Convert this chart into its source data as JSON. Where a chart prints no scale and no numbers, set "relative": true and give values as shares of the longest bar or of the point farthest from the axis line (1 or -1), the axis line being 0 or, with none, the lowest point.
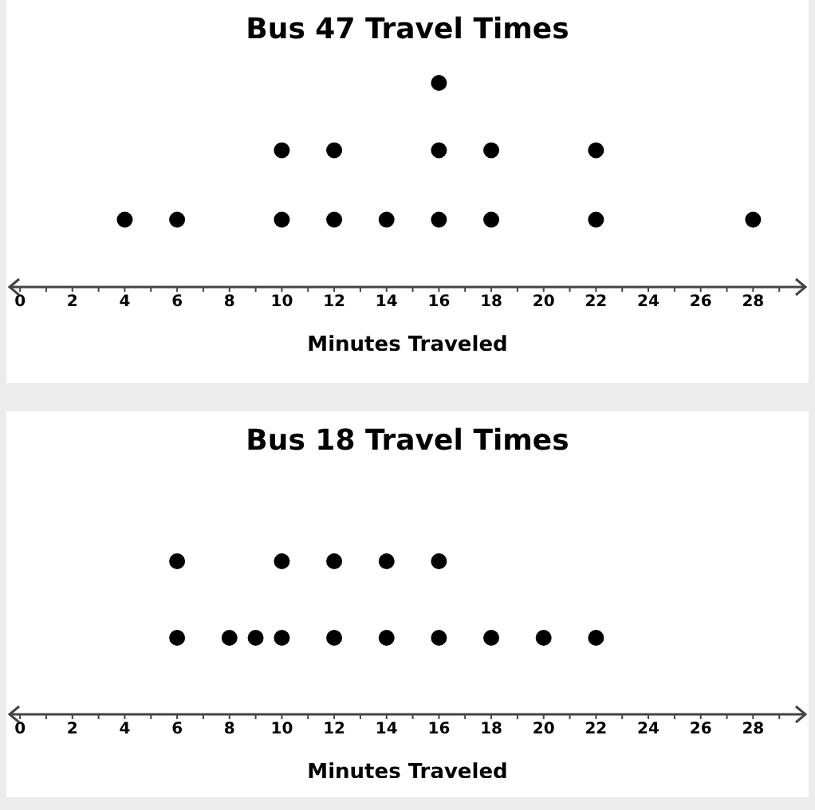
{
  "chart_data": [
    {
      "type": "scatter",
      "title": "Bus 47 Travel Times",
      "xlabel": "Minutes Traveled",
      "relative": true,
      "tick_labels": "x",
      "marker": "circle",
      "color": "#000000",
      "x": [
        4,
        6,
        10,
        10,
        12,
        12,
        14,
        16,
        16,
        16,
        18,
        18,
        22,
        22,
        28
      ],
      "values": [
        0.33,
        0.33,
        0.33,
        0.67,
        0.33,
        0.67,
        0.33,
        0.33,
        0.67,
        1,
        0.33,
        0.67,
        0.33,
        0.67,
        0.33
      ],
      "xlim": [
        -0.4,
        30
      ],
      "xticks": [
        0,
        {
          "value": 1,
          "label": null
        },
        2,
        {
          "value": 3,
          "label": null
        },
        4,
        {
          "value": 5,
          "label": null
        },
        6,
        {
          "value": 7,
          "label": null
        },
        8,
        {
          "value": 9,
          "label": null
        },
        10,
        {
          "value": 11,
          "label": null
        },
        12,
        {
          "value": 13,
          "label": null
        },
        14,
        {
          "value": 15,
          "label": null
        },
        16,
        {
          "value": 17,
          "label": null
        },
        18,
        {
          "value": 19,
          "label": null
        },
        20,
        {
          "value": 21,
          "label": null
        },
        22,
        {
          "value": 23,
          "label": null
        },
        24,
        {
          "value": 25,
          "label": null
        },
        26,
        {
          "value": 27,
          "label": null
        },
        28,
        {
          "value": 29,
          "label": null
        }
      ]
    },
    {
      "type": "scatter",
      "title": "Bus 18 Travel Times",
      "xlabel": "Minutes Traveled",
      "relative": true,
      "tick_labels": "x",
      "marker": "circle",
      "color": "#000000",
      "x": [
        6,
        6,
        8,
        9,
        10,
        10,
        12,
        12,
        14,
        14,
        16,
        16,
        18,
        20,
        22
      ],
      "values": [
        0.5,
        1,
        0.5,
        0.5,
        0.5,
        1,
        0.5,
        1,
        0.5,
        1,
        0.5,
        1,
        0.5,
        0.5,
        0.5
      ],
      "xlim": [
        -0.4,
        30
      ],
      "xticks": [
        0,
        {
          "value": 1,
          "label": null
        },
        2,
        {
          "value": 3,
          "label": null
        },
        4,
        {
          "value": 5,
          "label": null
        },
        6,
        {
          "value": 7,
          "label": null
        },
        8,
        {
          "value": 9,
          "label": null
        },
        10,
        {
          "value": 11,
          "label": null
        },
        12,
        {
          "value": 13,
          "label": null
        },
        14,
        {
          "value": 15,
          "label": null
        },
        16,
        {
          "value": 17,
          "label": null
        },
        18,
        {
          "value": 19,
          "label": null
        },
        20,
        {
          "value": 21,
          "label": null
        },
        22,
        {
          "value": 23,
          "label": null
        },
        24,
        {
          "value": 25,
          "label": null
        },
        26,
        {
          "value": 27,
          "label": null
        },
        28,
        {
          "value": 29,
          "label": null
        }
      ]
    }
  ]
}
